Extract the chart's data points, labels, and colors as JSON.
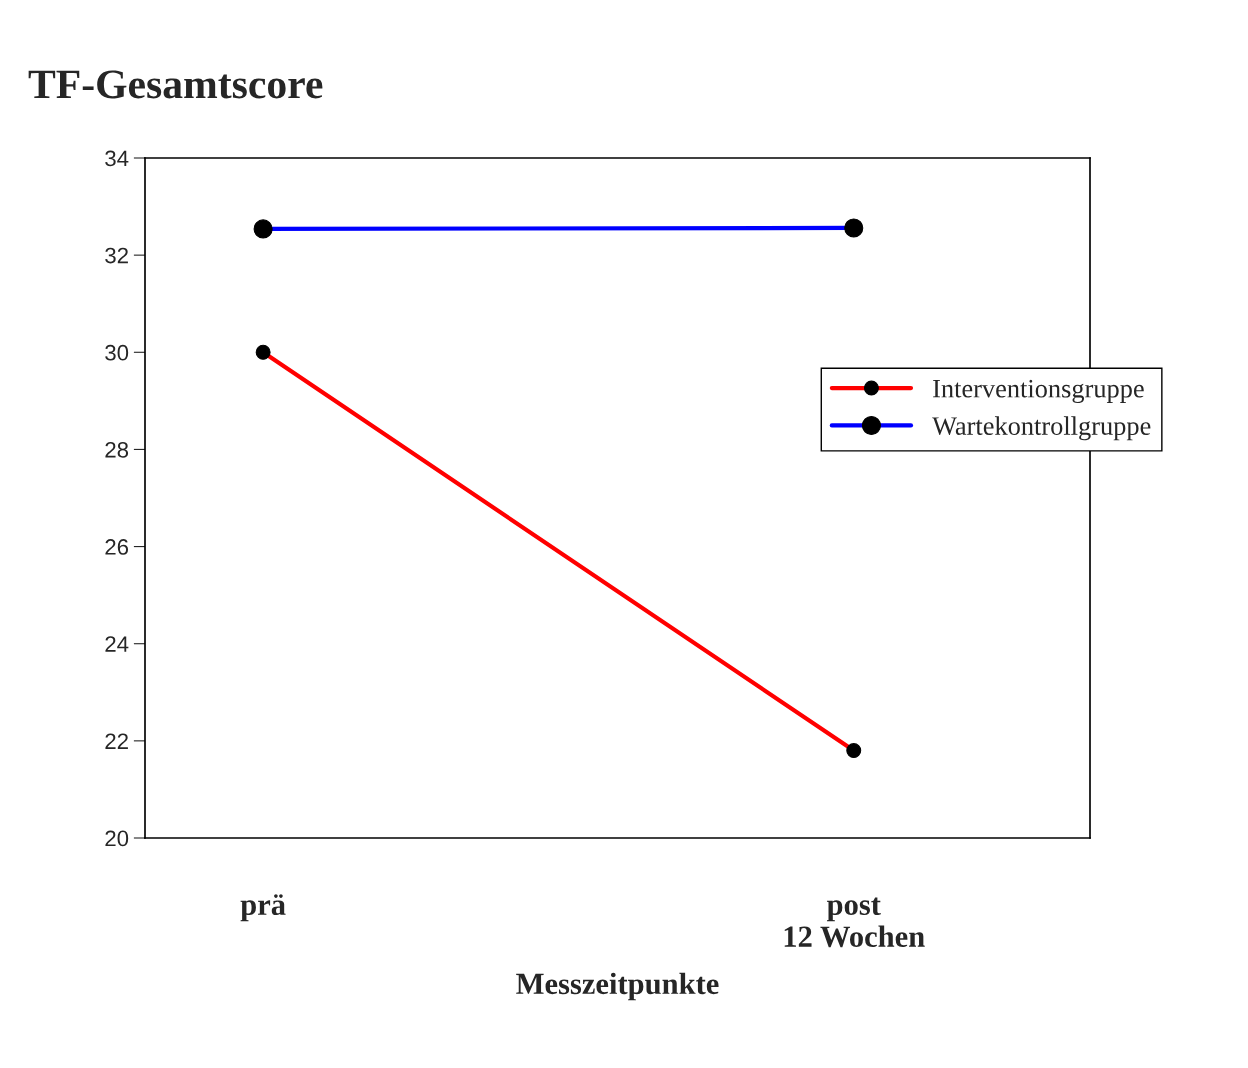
{
  "chart_data": {
    "type": "line",
    "title": "TF-Gesamtscore",
    "xlabel": "Messzeitpunkte",
    "categories": [
      "prä",
      "post\n12 Wochen"
    ],
    "series": [
      {
        "name": "Interventionsgruppe",
        "color": "#ff0000",
        "values": [
          30.0,
          21.8
        ]
      },
      {
        "name": "Wartekontrollgruppe",
        "color": "#0000ff",
        "values": [
          32.54,
          32.56
        ]
      }
    ],
    "ylim": [
      20,
      34
    ],
    "yticks": [
      20,
      22,
      24,
      26,
      28,
      30,
      32,
      34
    ],
    "marker": "circle",
    "line_style": "solid",
    "legend": "right",
    "grid": false
  }
}
